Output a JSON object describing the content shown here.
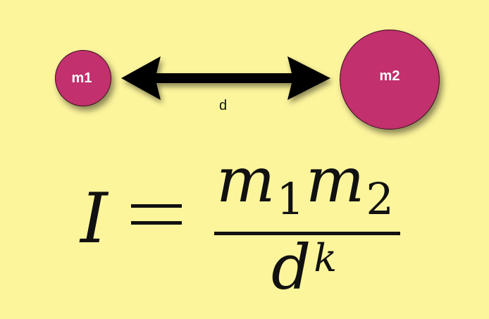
{
  "diagram": {
    "masses": [
      {
        "label": "m1"
      },
      {
        "label": "m2"
      }
    ],
    "distance_label": "d"
  },
  "formula": {
    "lhs": "I",
    "equals": "=",
    "numerator": [
      {
        "var": "m",
        "sub": "1"
      },
      {
        "var": "m",
        "sub": "2"
      }
    ],
    "denominator": {
      "base": "d",
      "exponent": "k"
    }
  },
  "colors": {
    "background": "#fdf59c",
    "mass_fill": "#c2306d",
    "arrow": "#000000",
    "text": "#111111",
    "mass_text": "#ffffff"
  }
}
